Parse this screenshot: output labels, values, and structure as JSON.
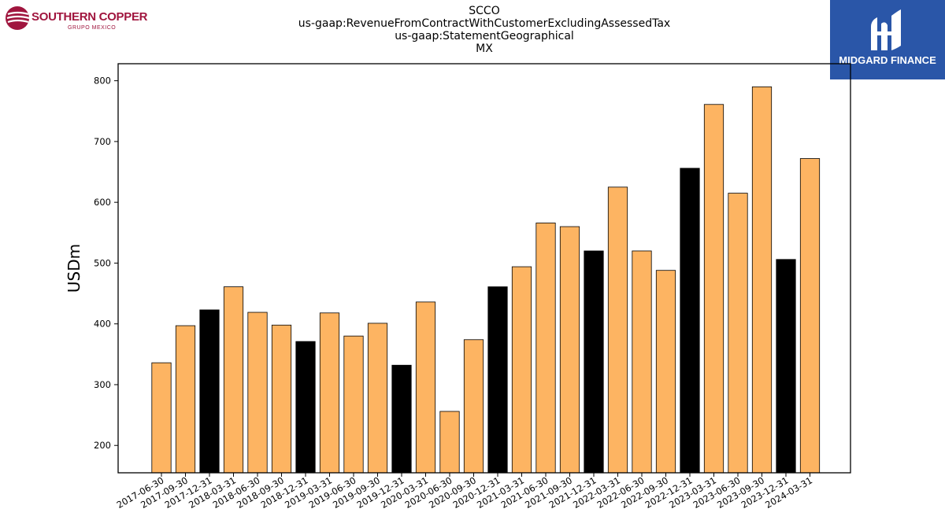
{
  "logos": {
    "left_name": "SOUTHERN COPPER",
    "left_sub": "GRUPO MEXICO",
    "right_name": "MIDGARD FINANCE"
  },
  "chart_data": {
    "type": "bar",
    "title_lines": [
      "SCCO",
      "us-gaap:RevenueFromContractWithCustomerExcludingAssessedTax",
      "us-gaap:StatementGeographical",
      "MX"
    ],
    "xlabel": "",
    "ylabel": "USDm",
    "ylim": [
      155,
      828
    ],
    "yticks": [
      200,
      300,
      400,
      500,
      600,
      700,
      800
    ],
    "grid": false,
    "legend": "none",
    "colors": {
      "quarter": "#fdb462",
      "year_end": "#000000",
      "edge": "#000000"
    },
    "categories": [
      "2017-06-30",
      "2017-09-30",
      "2017-12-31",
      "2018-03-31",
      "2018-06-30",
      "2018-09-30",
      "2018-12-31",
      "2019-03-31",
      "2019-06-30",
      "2019-09-30",
      "2019-12-31",
      "2020-03-31",
      "2020-06-30",
      "2020-09-30",
      "2020-12-31",
      "2021-03-31",
      "2021-06-30",
      "2021-09-30",
      "2021-12-31",
      "2022-03-31",
      "2022-06-30",
      "2022-09-30",
      "2022-12-31",
      "2023-03-31",
      "2023-06-30",
      "2023-09-30",
      "2023-12-31",
      "2024-03-31"
    ],
    "values": [
      336,
      397,
      423,
      461,
      419,
      398,
      371,
      418,
      380,
      401,
      332,
      436,
      256,
      374,
      461,
      494,
      566,
      560,
      520,
      625,
      520,
      488,
      656,
      761,
      615,
      790,
      506,
      672
    ],
    "highlight": [
      false,
      false,
      true,
      false,
      false,
      false,
      true,
      false,
      false,
      false,
      true,
      false,
      false,
      false,
      true,
      false,
      false,
      false,
      true,
      false,
      false,
      false,
      true,
      false,
      false,
      false,
      true,
      false
    ]
  }
}
